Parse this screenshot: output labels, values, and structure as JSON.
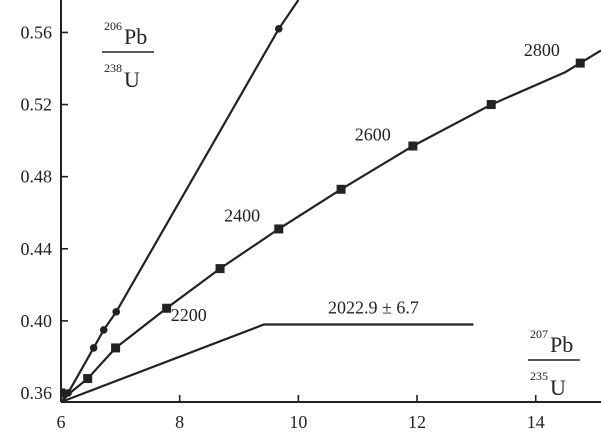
{
  "chart_data": {
    "type": "line",
    "title": "",
    "xlim": [
      6,
      15.1
    ],
    "ylim": [
      0.355,
      0.578
    ],
    "x_ticks": [
      6,
      8,
      10,
      12,
      14
    ],
    "y_ticks": [
      0.36,
      0.4,
      0.44,
      0.48,
      0.52,
      0.56
    ],
    "y_tick_labels": [
      "0.36",
      "0.40",
      "0.44",
      "0.48",
      "0.52",
      "0.56"
    ],
    "x_tick_labels": [
      "6",
      "8",
      "10",
      "12",
      "14"
    ],
    "grid": false,
    "ylabel": {
      "sup": "206",
      "main": "Pb",
      "den_sup": "238",
      "den_main": "U"
    },
    "xlabel": {
      "sup": "207",
      "main": "Pb",
      "den_sup": "235",
      "den_main": "U"
    },
    "series": [
      {
        "marker": "circle",
        "x": [
          6.0,
          6.12,
          6.55,
          6.72,
          6.93,
          9.67
        ],
        "y": [
          0.355,
          0.36,
          0.385,
          0.395,
          0.405,
          0.562
        ],
        "line_end": [
          10.0,
          0.578
        ]
      },
      {
        "marker": "square",
        "x": [
          6.0,
          6.15,
          6.45,
          6.92,
          7.78,
          8.68,
          9.67,
          10.72,
          11.93,
          13.25,
          14.5,
          14.75,
          15.1
        ],
        "y": [
          0.355,
          0.36,
          0.368,
          0.385,
          0.407,
          0.429,
          0.451,
          0.473,
          0.497,
          0.52,
          0.538,
          0.543,
          0.55
        ],
        "marker_x": [
          6.0,
          6.45,
          6.92,
          7.78,
          8.68,
          9.67,
          10.72,
          11.93,
          13.25,
          14.75
        ],
        "marker_y": [
          0.36,
          0.368,
          0.385,
          0.407,
          0.429,
          0.451,
          0.473,
          0.497,
          0.52,
          0.543
        ]
      },
      {
        "marker": "none",
        "x": [
          6.0,
          9.42,
          12.95
        ],
        "y": [
          0.355,
          0.398,
          0.398
        ]
      }
    ],
    "annotations": [
      {
        "text": "2200",
        "x": 7.85,
        "y": 0.4
      },
      {
        "text": "2400",
        "x": 8.75,
        "y": 0.455
      },
      {
        "text": "2600",
        "x": 10.95,
        "y": 0.5
      },
      {
        "text": "2800",
        "x": 13.8,
        "y": 0.547
      },
      {
        "text": "2022.9 ± 6.7",
        "x": 10.5,
        "y": 0.404
      }
    ]
  }
}
